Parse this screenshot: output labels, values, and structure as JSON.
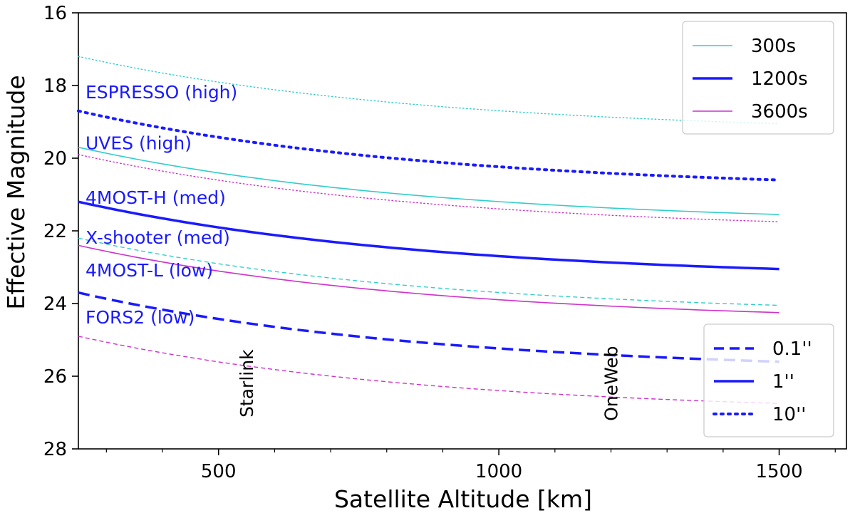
{
  "chart_data": {
    "type": "line",
    "xlabel": "Satellite Altitude [km]",
    "ylabel": "Effective Magnitude",
    "xlim": [
      250,
      1620
    ],
    "ylim": [
      16,
      28
    ],
    "y_inverted": true,
    "x_major_ticks": [
      500,
      1000,
      1500
    ],
    "x_minor_ticks": [
      300,
      400,
      600,
      700,
      800,
      900,
      1100,
      1200,
      1300,
      1400,
      1600
    ],
    "y_ticks": [
      16,
      18,
      20,
      22,
      24,
      26,
      28
    ],
    "grid": false,
    "colors": {
      "300s": "#33cccc",
      "1200s": "#1a1aff",
      "3600s": "#cc33cc"
    },
    "series": [
      {
        "exposure": "300s",
        "seeing": "10''",
        "x": [
          250,
          1500
        ],
        "y": [
          17.2,
          19.05
        ]
      },
      {
        "exposure": "1200s",
        "seeing": "10''",
        "x": [
          250,
          1500
        ],
        "y": [
          18.7,
          20.6
        ]
      },
      {
        "exposure": "3600s",
        "seeing": "10''",
        "x": [
          250,
          1500
        ],
        "y": [
          19.9,
          21.75
        ]
      },
      {
        "exposure": "300s",
        "seeing": "1''",
        "x": [
          250,
          1500
        ],
        "y": [
          19.7,
          21.55
        ]
      },
      {
        "exposure": "1200s",
        "seeing": "1''",
        "x": [
          250,
          1500
        ],
        "y": [
          21.2,
          23.05
        ]
      },
      {
        "exposure": "3600s",
        "seeing": "1''",
        "x": [
          250,
          1500
        ],
        "y": [
          22.4,
          24.25
        ]
      },
      {
        "exposure": "300s",
        "seeing": "0.1''",
        "x": [
          250,
          1500
        ],
        "y": [
          22.2,
          24.05
        ]
      },
      {
        "exposure": "1200s",
        "seeing": "0.1''",
        "x": [
          250,
          1500
        ],
        "y": [
          23.7,
          25.6
        ]
      },
      {
        "exposure": "3600s",
        "seeing": "0.1''",
        "x": [
          250,
          1500
        ],
        "y": [
          24.9,
          26.75
        ]
      }
    ],
    "instrument_labels": [
      {
        "text": "ESPRESSO (high)",
        "y": 18.35
      },
      {
        "text": "UVES (high)",
        "y": 19.75
      },
      {
        "text": "4MOST-H (med)",
        "y": 21.25
      },
      {
        "text": "X-shooter (med)",
        "y": 22.35
      },
      {
        "text": "4MOST-L (low)",
        "y": 23.25
      },
      {
        "text": "FORS2 (low)",
        "y": 24.55
      }
    ],
    "vertical_labels": [
      {
        "text": "Starlink",
        "x": 550,
        "y": 26.2
      },
      {
        "text": "OneWeb",
        "x": 1200,
        "y": 26.2
      }
    ],
    "legends": [
      {
        "position": "top-right",
        "entries": [
          {
            "label": "300s",
            "color_key": "300s",
            "style": "solid-thin"
          },
          {
            "label": "1200s",
            "color_key": "1200s",
            "style": "solid-thick"
          },
          {
            "label": "3600s",
            "color_key": "3600s",
            "style": "solid-thin"
          }
        ]
      },
      {
        "position": "bottom-right",
        "entries": [
          {
            "label": "0.1''",
            "color_key": "1200s",
            "style": "dashed"
          },
          {
            "label": "1''",
            "color_key": "1200s",
            "style": "solid"
          },
          {
            "label": "10''",
            "color_key": "1200s",
            "style": "dotted"
          }
        ]
      }
    ]
  }
}
